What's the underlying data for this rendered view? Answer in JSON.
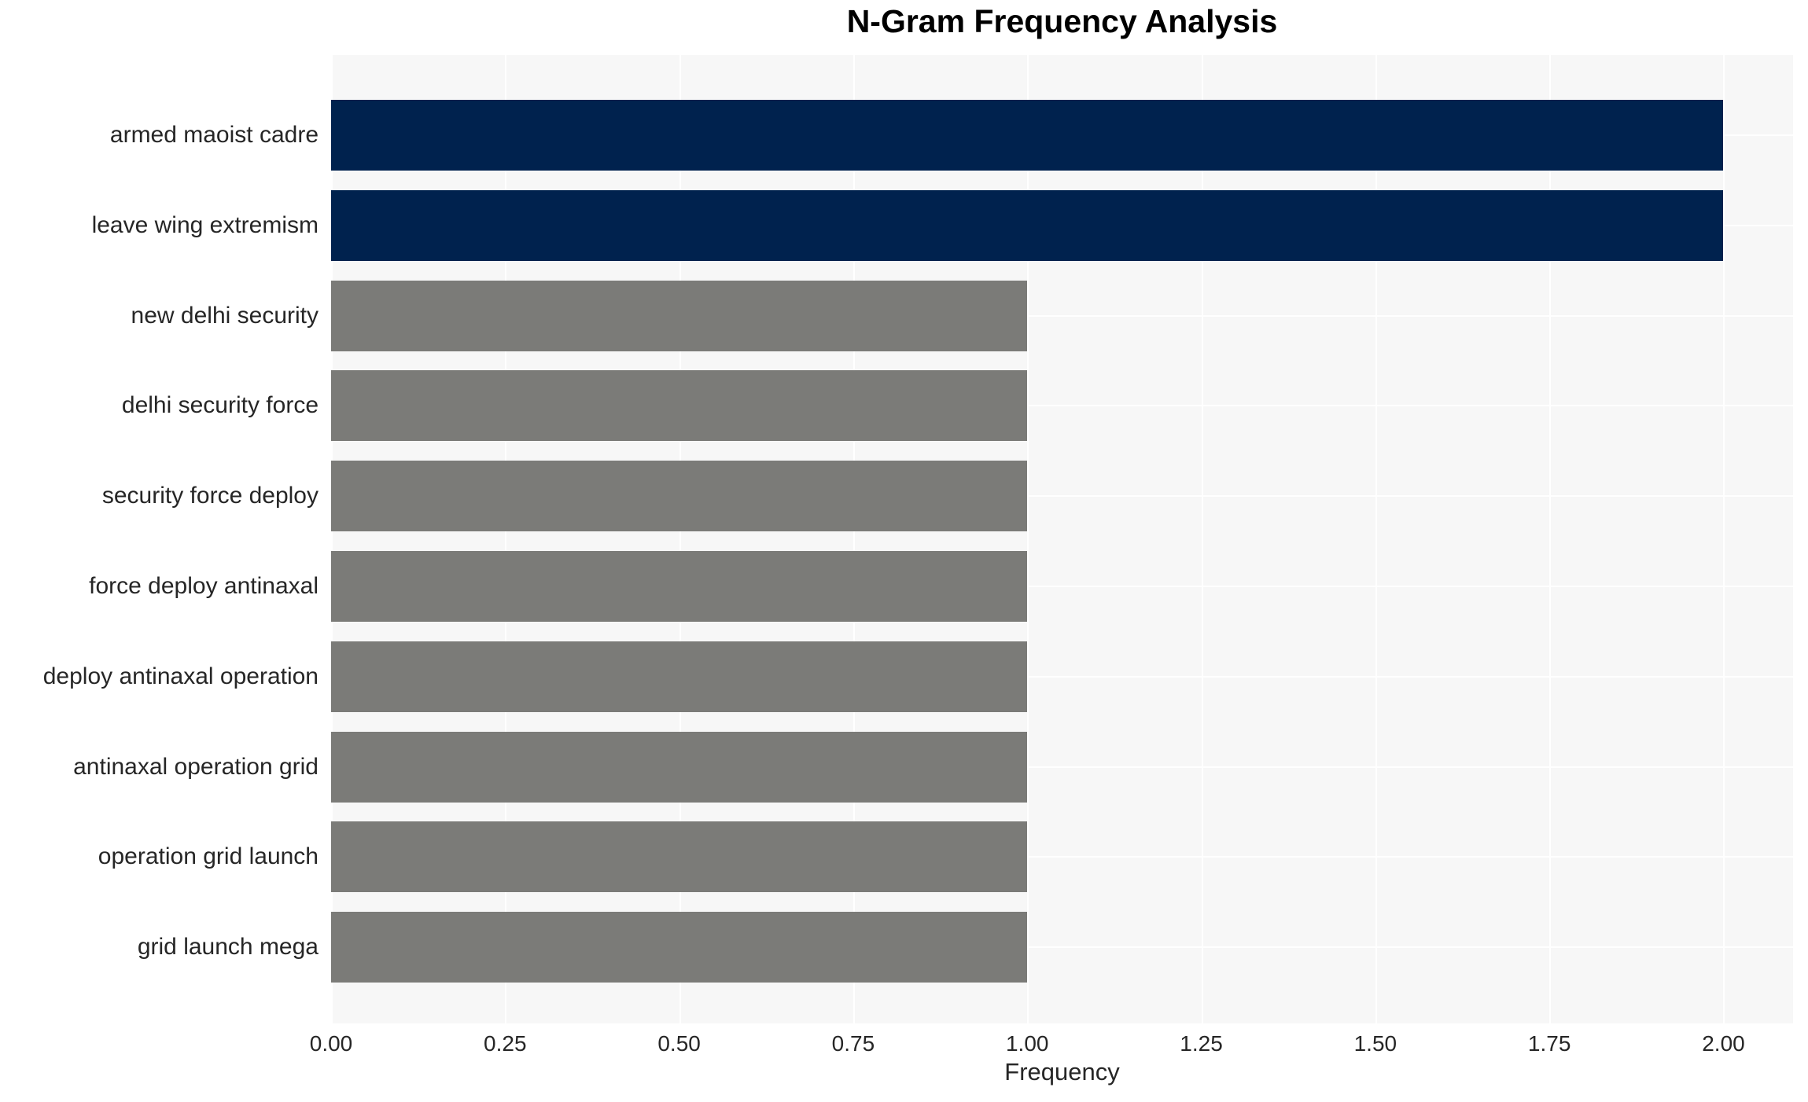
{
  "header": {
    "title": "N-Gram Frequency Analysis"
  },
  "axis": {
    "xlabel": "Frequency",
    "xtick_labels": [
      "0.00",
      "0.25",
      "0.50",
      "0.75",
      "1.00",
      "1.25",
      "1.50",
      "1.75",
      "2.00"
    ]
  },
  "colors": {
    "highlight_bar": "#00224e",
    "default_bar": "#7b7b78",
    "plot_background": "#f7f7f7",
    "gridline": "#ffffff",
    "text": "#262626",
    "title_text": "#000000"
  },
  "chart_data": {
    "type": "bar",
    "orientation": "horizontal",
    "title": "N-Gram Frequency Analysis",
    "xlabel": "Frequency",
    "ylabel": "",
    "categories": [
      "armed maoist cadre",
      "leave wing extremism",
      "new delhi security",
      "delhi security force",
      "security force deploy",
      "force deploy antinaxal",
      "deploy antinaxal operation",
      "antinaxal operation grid",
      "operation grid launch",
      "grid launch mega"
    ],
    "values": [
      2,
      2,
      1,
      1,
      1,
      1,
      1,
      1,
      1,
      1
    ],
    "bar_colors": [
      "#00224e",
      "#00224e",
      "#7b7b78",
      "#7b7b78",
      "#7b7b78",
      "#7b7b78",
      "#7b7b78",
      "#7b7b78",
      "#7b7b78",
      "#7b7b78"
    ],
    "xticks": [
      0,
      0.25,
      0.5,
      0.75,
      1,
      1.25,
      1.5,
      1.75,
      2
    ],
    "xlim": [
      0,
      2.1
    ],
    "grid": true,
    "legend": false
  }
}
